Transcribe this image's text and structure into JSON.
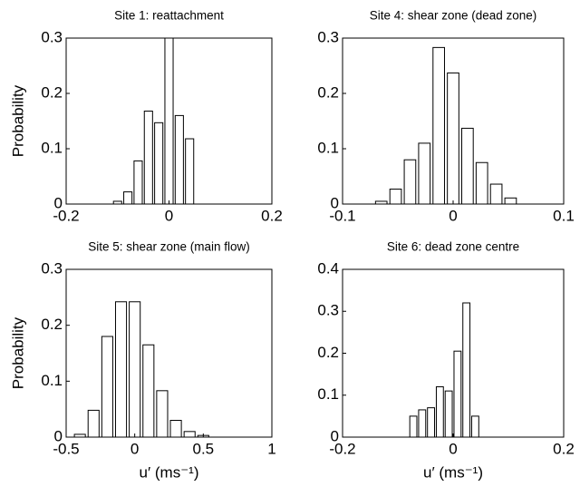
{
  "chart_data": [
    {
      "type": "histogram",
      "title": "Site 1: reattachment",
      "ylabel": "Probability",
      "bins": [
        -0.11,
        -0.09,
        -0.07,
        -0.05,
        -0.03,
        -0.01,
        0.01,
        0.03,
        0.05
      ],
      "values": [
        0.005,
        0.022,
        0.078,
        0.168,
        0.147,
        0.3,
        0.16,
        0.118
      ],
      "xlim": [
        -0.2,
        0.2
      ],
      "xticks": [
        -0.2,
        0,
        0.2
      ],
      "ylim": [
        0,
        0.3
      ],
      "yticks": [
        0,
        0.1,
        0.2,
        0.3
      ],
      "color": "#ffffff",
      "edgecolor": "#000000",
      "grid": false
    },
    {
      "type": "histogram",
      "title": "Site 4: shear zone (dead zone)",
      "bins": [
        -0.0715,
        -0.0585,
        -0.0455,
        -0.0325,
        -0.0195,
        -0.0065,
        0.0065,
        0.0195,
        0.0325,
        0.0455,
        0.0585
      ],
      "values": [
        0.005,
        0.027,
        0.08,
        0.11,
        0.283,
        0.237,
        0.137,
        0.075,
        0.036,
        0.011
      ],
      "xlim": [
        -0.1,
        0.1
      ],
      "xticks": [
        -0.1,
        0,
        0.1
      ],
      "ylim": [
        0,
        0.3
      ],
      "yticks": [
        0,
        0.1,
        0.2,
        0.3
      ],
      "color": "#ffffff",
      "edgecolor": "#000000",
      "grid": false
    },
    {
      "type": "histogram",
      "title": "Site 5: shear zone (main flow)",
      "ylabel": "Probability",
      "xlabel": "u′ (ms⁻¹)",
      "bins": [
        -0.45,
        -0.35,
        -0.25,
        -0.15,
        -0.05,
        0.05,
        0.15,
        0.25,
        0.35,
        0.45,
        0.55
      ],
      "values": [
        0.005,
        0.048,
        0.18,
        0.242,
        0.242,
        0.165,
        0.083,
        0.03,
        0.01,
        0.003
      ],
      "xlim": [
        -0.5,
        1
      ],
      "xticks": [
        -0.5,
        0,
        0.5,
        1
      ],
      "ylim": [
        0,
        0.3
      ],
      "yticks": [
        0,
        0.1,
        0.2,
        0.3
      ],
      "color": "#ffffff",
      "edgecolor": "#000000",
      "grid": false
    },
    {
      "type": "histogram",
      "title": "Site 6: dead zone centre",
      "xlabel": "u′ (ms⁻¹)",
      "bins": [
        -0.08,
        -0.064,
        -0.048,
        -0.032,
        -0.016,
        0,
        0.016,
        0.032,
        0.048
      ],
      "values": [
        0.05,
        0.065,
        0.07,
        0.12,
        0.11,
        0.205,
        0.32,
        0.05
      ],
      "xlim": [
        -0.2,
        0.2
      ],
      "xticks": [
        -0.2,
        0,
        0.2
      ],
      "ylim": [
        0,
        0.4
      ],
      "yticks": [
        0,
        0.1,
        0.2,
        0.3,
        0.4
      ],
      "color": "#ffffff",
      "edgecolor": "#000000",
      "grid": false
    }
  ]
}
